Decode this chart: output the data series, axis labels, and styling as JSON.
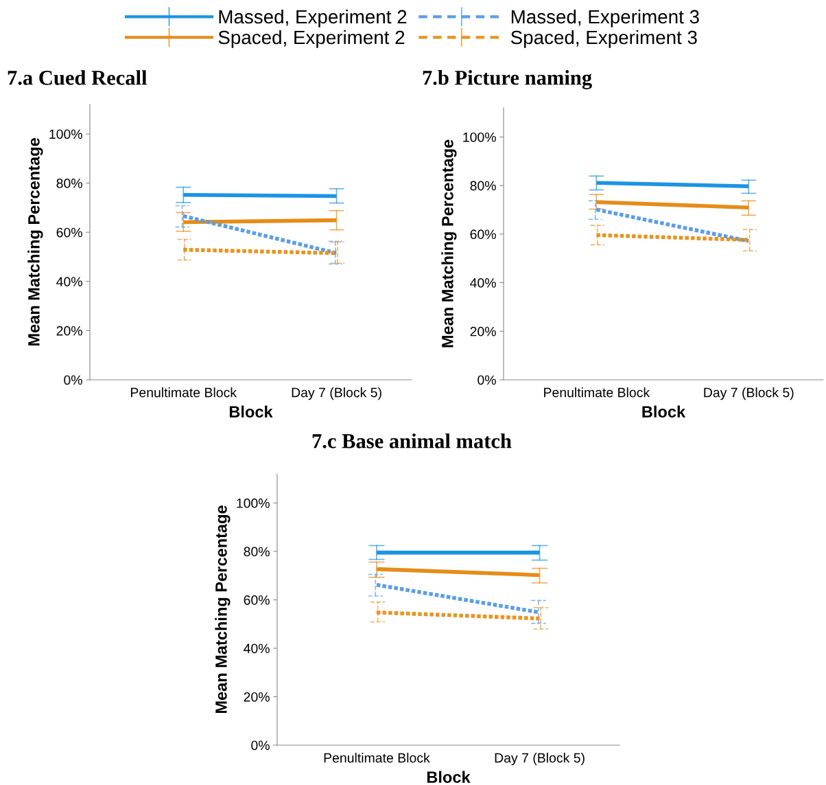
{
  "chart_data": [
    {
      "type": "line",
      "title": "7.a Cued Recall",
      "xlabel": "Block",
      "ylabel": "Mean Matching Percentage",
      "categories": [
        "Penultimate Block",
        "Day 7 (Block 5)"
      ],
      "ylim": [
        0,
        112
      ],
      "yticks": [
        {
          "value": 0,
          "label": "0%"
        },
        {
          "value": 20,
          "label": "20%"
        },
        {
          "value": 40,
          "label": "40%"
        },
        {
          "value": 60,
          "label": "60%"
        },
        {
          "value": 80,
          "label": "80%"
        },
        {
          "value": 100,
          "label": "100%"
        }
      ],
      "grid": false,
      "legend": "top",
      "marker": "none",
      "series": [
        {
          "name": "Massed, Experiment 2",
          "color": "#1b94e4",
          "line_style": "solid",
          "values": [
            75.2,
            74.7
          ],
          "errors": [
            [
              72.1,
              78.3
            ],
            [
              71.9,
              77.7
            ]
          ]
        },
        {
          "name": "Spaced, Experiment 2",
          "color": "#e68c17",
          "line_style": "solid",
          "values": [
            64.1,
            64.9
          ],
          "errors": [
            [
              60.4,
              68.0
            ],
            [
              61.0,
              68.8
            ]
          ]
        },
        {
          "name": "Massed, Experiment 3",
          "color": "#5b9de6",
          "line_style": "dashed",
          "values": [
            66.6,
            51.5
          ],
          "errors": [
            [
              62.1,
              70.8
            ],
            [
              47.1,
              56.3
            ]
          ]
        },
        {
          "name": "Spaced, Experiment 3",
          "color": "#e8941f",
          "line_style": "dashed",
          "values": [
            52.9,
            51.5
          ],
          "errors": [
            [
              48.7,
              57.1
            ],
            [
              47.4,
              56.0
            ]
          ]
        }
      ]
    },
    {
      "type": "line",
      "title": "7.b Picture naming",
      "xlabel": "Block",
      "ylabel": "Mean Matching Percentage",
      "categories": [
        "Penultimate Block",
        "Day 7 (Block 5)"
      ],
      "ylim": [
        0,
        112
      ],
      "yticks": [
        {
          "value": 0,
          "label": "0%"
        },
        {
          "value": 20,
          "label": "20%"
        },
        {
          "value": 40,
          "label": "40%"
        },
        {
          "value": 60,
          "label": "60%"
        },
        {
          "value": 80,
          "label": "80%"
        },
        {
          "value": 100,
          "label": "100%"
        }
      ],
      "grid": false,
      "marker": "none",
      "series": [
        {
          "color": "#1b94e4",
          "line_style": "solid",
          "values": [
            81.1,
            79.7
          ],
          "errors": [
            [
              78.2,
              83.9
            ],
            [
              76.8,
              82.2
            ]
          ]
        },
        {
          "color": "#e68c17",
          "line_style": "solid",
          "values": [
            73.2,
            70.9
          ],
          "errors": [
            [
              70.3,
              76.3
            ],
            [
              67.8,
              73.7
            ]
          ]
        },
        {
          "color": "#5b9de6",
          "line_style": "dashed",
          "values": [
            70.1,
            57.1
          ],
          "errors": [
            [
              66.1,
              73.7
            ],
            null
          ]
        },
        {
          "color": "#e8941f",
          "line_style": "dashed",
          "values": [
            59.6,
            57.6
          ],
          "errors": [
            [
              55.6,
              63.6
            ],
            [
              53.1,
              61.9
            ]
          ]
        }
      ]
    },
    {
      "type": "line",
      "title": "7.c Base animal match",
      "xlabel": "Block",
      "ylabel": "Mean Matching Percentage",
      "categories": [
        "Penultimate Block",
        "Day 7 (Block 5)"
      ],
      "ylim": [
        0,
        112
      ],
      "yticks": [
        {
          "value": 0,
          "label": "0%"
        },
        {
          "value": 20,
          "label": "20%"
        },
        {
          "value": 40,
          "label": "40%"
        },
        {
          "value": 60,
          "label": "60%"
        },
        {
          "value": 80,
          "label": "80%"
        },
        {
          "value": 100,
          "label": "100%"
        }
      ],
      "grid": false,
      "marker": "none",
      "series": [
        {
          "color": "#1b94e4",
          "line_style": "solid",
          "values": [
            79.5,
            79.5
          ],
          "errors": [
            [
              76.7,
              82.4
            ],
            [
              76.4,
              82.4
            ]
          ]
        },
        {
          "color": "#e68c17",
          "line_style": "solid",
          "values": [
            72.7,
            70.2
          ],
          "errors": [
            [
              69.3,
              75.6
            ],
            [
              67.0,
              73.0
            ]
          ]
        },
        {
          "color": "#5b9de6",
          "line_style": "dashed",
          "values": [
            66.2,
            54.8
          ],
          "errors": [
            [
              61.6,
              70.5
            ],
            [
              50.3,
              59.7
            ]
          ]
        },
        {
          "color": "#e8941f",
          "line_style": "dashed",
          "values": [
            54.8,
            52.3
          ],
          "errors": [
            [
              50.9,
              59.1
            ],
            [
              48.0,
              56.8
            ]
          ]
        }
      ]
    }
  ]
}
